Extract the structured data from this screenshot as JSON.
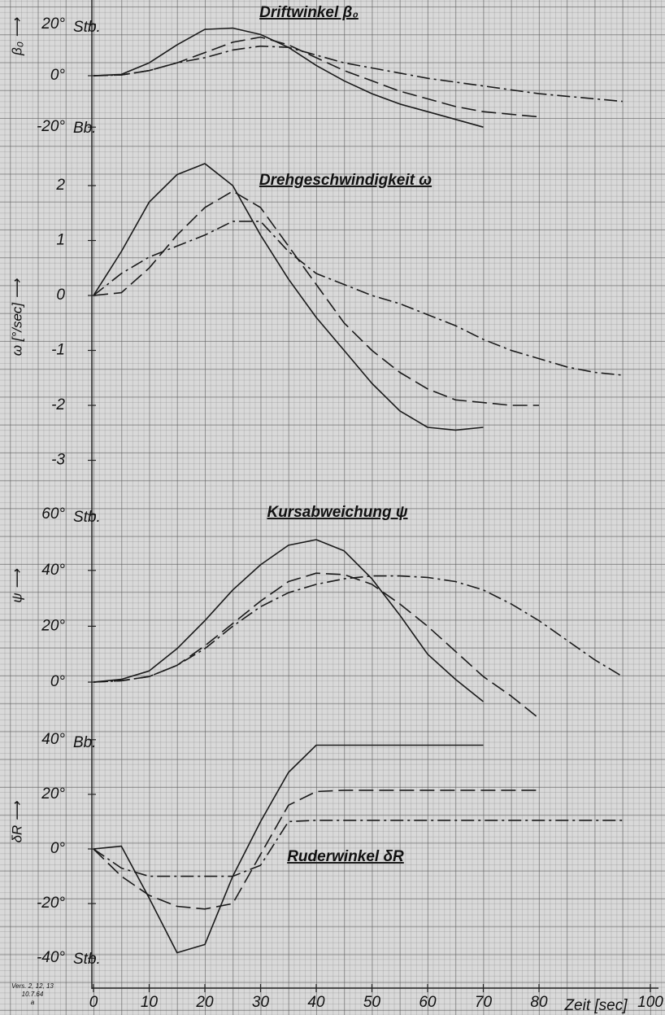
{
  "chart_data": [
    {
      "type": "line",
      "title": "Driftwinkel β₀",
      "ylabel": "β₀ ⟶",
      "annotations": [
        "Stb.",
        "Bb."
      ],
      "x": [
        0,
        5,
        10,
        15,
        20,
        25,
        30,
        35,
        40,
        45,
        50,
        55,
        60,
        65,
        70,
        75,
        80,
        85,
        90,
        95
      ],
      "xlim": [
        0,
        100
      ],
      "ylim": [
        -25,
        25
      ],
      "yticks": [
        {
          "value": 20,
          "label": "20°"
        },
        {
          "value": 0,
          "label": "0°"
        },
        {
          "value": -20,
          "label": "-20°"
        }
      ],
      "series": [
        {
          "color": "#1a1a1a",
          "dash": "solid",
          "values": [
            0,
            0.5,
            5,
            12,
            18,
            18.5,
            16,
            11,
            4,
            -2,
            -7,
            -11,
            -14,
            -17,
            -20,
            null,
            null,
            null,
            null,
            null
          ]
        },
        {
          "color": "#1a1a1a",
          "dash": "dashed",
          "values": [
            0,
            0.3,
            2,
            5,
            9,
            13,
            15,
            12,
            7,
            2,
            -2,
            -6,
            -9,
            -12,
            -14,
            -15,
            -16,
            null,
            null,
            null
          ]
        },
        {
          "color": "#1a1a1a",
          "dash": "dashdot",
          "values": [
            0,
            0.3,
            2,
            5,
            7,
            10,
            11.5,
            11,
            8,
            5,
            3,
            1,
            -1,
            -2.5,
            -4,
            -5.5,
            -7,
            -8,
            -9,
            -10
          ]
        }
      ]
    },
    {
      "type": "line",
      "title": "Drehgeschwindigkeit ω",
      "ylabel": "ω [°/sec] ⟶",
      "annotations": [],
      "x": [
        0,
        5,
        10,
        15,
        20,
        25,
        30,
        35,
        40,
        45,
        50,
        55,
        60,
        65,
        70,
        75,
        80,
        85,
        90,
        95
      ],
      "xlim": [
        0,
        100
      ],
      "ylim": [
        -3.2,
        2.6
      ],
      "yticks": [
        2,
        1,
        0,
        -1,
        -2,
        -3
      ],
      "series": [
        {
          "color": "#1a1a1a",
          "dash": "solid",
          "values": [
            0,
            0.8,
            1.7,
            2.2,
            2.4,
            2.0,
            1.1,
            0.3,
            -0.4,
            -1.0,
            -1.6,
            -2.1,
            -2.4,
            -2.45,
            -2.4,
            null,
            null,
            null,
            null,
            null
          ]
        },
        {
          "color": "#1a1a1a",
          "dash": "dashed",
          "values": [
            0,
            0.05,
            0.5,
            1.1,
            1.6,
            1.9,
            1.6,
            0.9,
            0.2,
            -0.5,
            -1.0,
            -1.4,
            -1.7,
            -1.9,
            -1.95,
            -2.0,
            -2.0,
            null,
            null,
            null
          ]
        },
        {
          "color": "#1a1a1a",
          "dash": "dashdot",
          "values": [
            0,
            0.4,
            0.7,
            0.9,
            1.1,
            1.35,
            1.35,
            0.8,
            0.4,
            0.2,
            0,
            -0.15,
            -0.35,
            -0.55,
            -0.8,
            -1.0,
            -1.15,
            -1.3,
            -1.4,
            -1.45
          ]
        }
      ]
    },
    {
      "type": "line",
      "title": "Kursabweichung ψ",
      "ylabel": "ψ ⟶",
      "annotations": [
        "Stb."
      ],
      "x": [
        0,
        5,
        10,
        15,
        20,
        25,
        30,
        35,
        40,
        45,
        50,
        55,
        60,
        65,
        70,
        75,
        80,
        85,
        90,
        95
      ],
      "xlim": [
        0,
        100
      ],
      "ylim": [
        -15,
        65
      ],
      "yticks": [
        {
          "value": 60,
          "label": "60°"
        },
        {
          "value": 40,
          "label": "40°"
        },
        {
          "value": 20,
          "label": "20°"
        },
        {
          "value": 0,
          "label": "0°"
        }
      ],
      "series": [
        {
          "color": "#1a1a1a",
          "dash": "solid",
          "values": [
            0,
            1,
            4,
            12,
            22,
            33,
            42,
            49,
            51,
            47,
            37,
            24,
            10,
            1,
            -7,
            null,
            null,
            null,
            null,
            null
          ]
        },
        {
          "color": "#1a1a1a",
          "dash": "dashed",
          "values": [
            0,
            0.5,
            2,
            6,
            13,
            21,
            29,
            36,
            39,
            38.5,
            35,
            28,
            20,
            11,
            2,
            -5,
            -13,
            null,
            null,
            null
          ]
        },
        {
          "color": "#1a1a1a",
          "dash": "dashdot",
          "values": [
            0,
            0.5,
            2,
            6,
            12,
            20,
            27,
            32,
            35,
            37,
            38,
            38,
            37.5,
            36,
            33,
            28,
            22,
            15,
            8,
            2
          ]
        }
      ]
    },
    {
      "type": "line",
      "title": "Ruderwinkel δR",
      "ylabel": "δR ⟶",
      "annotations": [
        "Bb.",
        "Stb."
      ],
      "x": [
        0,
        5,
        10,
        15,
        20,
        25,
        30,
        35,
        40,
        45,
        50,
        55,
        60,
        65,
        70,
        75,
        80,
        85,
        90,
        95
      ],
      "xlim": [
        0,
        100
      ],
      "ylim": [
        -45,
        45
      ],
      "yticks": [
        {
          "value": 40,
          "label": "40°"
        },
        {
          "value": 20,
          "label": "20°"
        },
        {
          "value": 0,
          "label": "0°"
        },
        {
          "value": -20,
          "label": "-20°"
        },
        {
          "value": -40,
          "label": "-40°"
        }
      ],
      "xticks": [
        0,
        10,
        20,
        30,
        40,
        50,
        60,
        70,
        80,
        100
      ],
      "xlabel": "Zeit [sec]",
      "series": [
        {
          "color": "#1a1a1a",
          "dash": "solid",
          "values": [
            0,
            1,
            -18,
            -38,
            -35,
            -10,
            10,
            28,
            38,
            38,
            38,
            38,
            38,
            38,
            38,
            null,
            null,
            null,
            null,
            null
          ]
        },
        {
          "color": "#1a1a1a",
          "dash": "dashed",
          "values": [
            0,
            -10,
            -17,
            -21,
            -22,
            -20,
            -2,
            16,
            21,
            21.5,
            21.5,
            21.5,
            21.5,
            21.5,
            21.5,
            21.5,
            21.5,
            null,
            null,
            null
          ]
        },
        {
          "color": "#1a1a1a",
          "dash": "dashdot",
          "values": [
            0,
            -7,
            -10,
            -10,
            -10,
            -10,
            -6,
            10,
            10.5,
            10.5,
            10.5,
            10.5,
            10.5,
            10.5,
            10.5,
            10.5,
            10.5,
            10.5,
            10.5,
            10.5
          ]
        }
      ]
    }
  ],
  "note": [
    "Vers. 2, 12, 13",
    "10.7.64",
    "a"
  ]
}
